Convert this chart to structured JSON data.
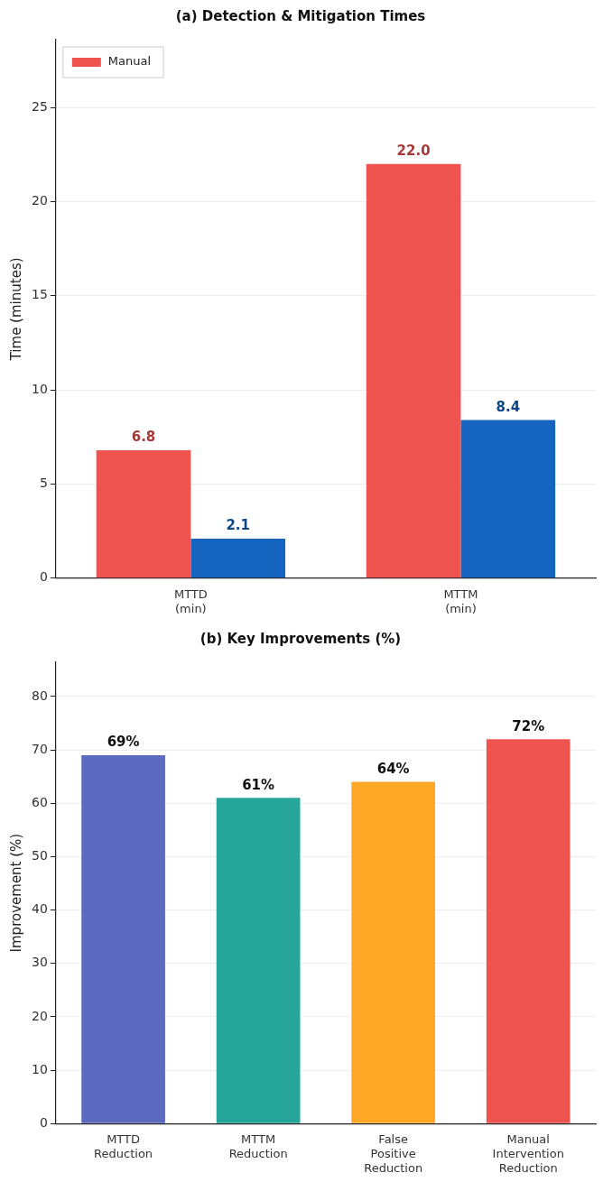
{
  "chart_data": [
    {
      "type": "bar",
      "title": "(a) Detection & Mitigation Times",
      "ylabel": "Time (minutes)",
      "categories": [
        "MTTD\n(min)",
        "MTTM\n(min)"
      ],
      "series": [
        {
          "name": "Manual",
          "color": "#ef5350",
          "values": [
            6.8,
            22.0
          ],
          "value_labels": [
            "6.8",
            "22.0"
          ]
        },
        {
          "color": "#1565c0",
          "values": [
            2.1,
            8.4
          ],
          "value_labels": [
            "2.1",
            "8.4"
          ]
        }
      ],
      "ylim": [
        0,
        28.6
      ],
      "yticks": [
        0,
        5,
        10,
        15,
        20,
        25
      ],
      "grid": "y",
      "legend": "top left"
    },
    {
      "type": "bar",
      "title": "(b) Key Improvements (%)",
      "ylabel": "Improvement (%)",
      "categories": [
        "MTTD\nReduction",
        "MTTM\nReduction",
        "False\nPositive\nReduction",
        "Manual\nIntervention\nReduction"
      ],
      "values": [
        69,
        61,
        64,
        72
      ],
      "colors": [
        "#5c6bc0",
        "#26a69a",
        "#ffa726",
        "#ef5350"
      ],
      "value_labels": [
        "69%",
        "61%",
        "64%",
        "72%"
      ],
      "ylim": [
        0,
        86.4
      ],
      "yticks": [
        0,
        10,
        20,
        30,
        40,
        50,
        60,
        70,
        80
      ],
      "grid": "y"
    }
  ]
}
